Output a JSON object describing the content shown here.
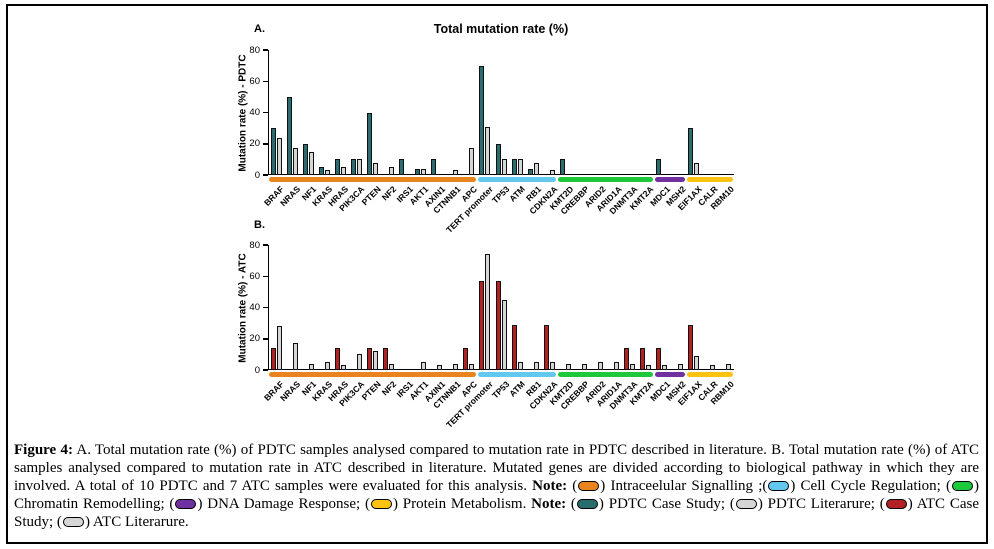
{
  "figure": {
    "panel_a_label": "A.",
    "panel_b_label": "B.",
    "title": "Total mutation rate (%)"
  },
  "chart_data": [
    {
      "type": "bar",
      "panel": "A",
      "title": "Total mutation rate (%)",
      "ylabel": "Mutation rate (%) - PDTC",
      "ylim": [
        0,
        80
      ],
      "yticks": [
        0,
        20,
        40,
        60,
        80
      ],
      "grid": false,
      "legend_position": "none",
      "categories": [
        "BRAF",
        "NRAS",
        "NF1",
        "KRAS",
        "HRAS",
        "PIK3CA",
        "PTEN",
        "NF2",
        "IRS1",
        "AKT1",
        "AXIN1",
        "CTNNB1",
        "APC",
        "TERT promoter",
        "TP53",
        "ATM",
        "RB1",
        "CDKN2A",
        "KMT2D",
        "CREBBP",
        "ARID2",
        "ARID1A",
        "DNMT3A",
        "KMT2A",
        "MDC1",
        "MSH2",
        "EIF1AX",
        "CALR",
        "RBM10"
      ],
      "series": [
        {
          "name": "PDTC Case Study",
          "color": "#2A6D6E",
          "values": [
            30,
            50,
            20,
            5,
            10,
            10,
            40,
            0,
            10,
            4,
            10,
            0,
            0,
            70,
            20,
            10,
            4,
            0,
            10,
            0,
            0,
            0,
            0,
            0,
            10,
            0,
            30,
            0,
            0
          ]
        },
        {
          "name": "PDTC Literarure",
          "color": "#D6D6D6",
          "values": [
            24,
            17,
            15,
            3,
            5,
            10,
            8,
            5,
            0,
            4,
            0,
            3,
            17,
            31,
            10,
            10,
            8,
            3,
            0,
            0,
            0,
            0,
            0,
            0,
            0,
            0,
            8,
            0,
            0
          ]
        }
      ],
      "pathway_bands": [
        {
          "name": "Intracellular Signalling",
          "color": "#E8831D",
          "start": 0,
          "end": 12
        },
        {
          "name": "Cell Cycle Regulation",
          "color": "#62C8EE",
          "start": 13,
          "end": 17
        },
        {
          "name": "Chromatin Remodelling",
          "color": "#1DC83B",
          "start": 18,
          "end": 23
        },
        {
          "name": "DNA Damage Response",
          "color": "#7030A0",
          "start": 24,
          "end": 25
        },
        {
          "name": "Protein Metabolism",
          "color": "#FEC211",
          "start": 26,
          "end": 28
        }
      ]
    },
    {
      "type": "bar",
      "panel": "B",
      "title": "",
      "ylabel": "Mutation rate (%) - ATC",
      "ylim": [
        0,
        80
      ],
      "yticks": [
        0,
        20,
        40,
        60,
        80
      ],
      "grid": false,
      "legend_position": "none",
      "categories": [
        "BRAF",
        "NRAS",
        "NF1",
        "KRAS",
        "HRAS",
        "PIK3CA",
        "PTEN",
        "NF2",
        "IRS1",
        "AKT1",
        "AXIN1",
        "CTNNB1",
        "APC",
        "TERT promoter",
        "TP53",
        "ATM",
        "RB1",
        "CDKN2A",
        "KMT2D",
        "CREBBP",
        "ARID2",
        "ARID1A",
        "DNMT3A",
        "KMT2A",
        "MDC1",
        "MSH2",
        "EIF1AX",
        "CALR",
        "RBM10"
      ],
      "series": [
        {
          "name": "ATC Case Study",
          "color": "#B22222",
          "values": [
            14,
            0,
            0,
            0,
            14,
            0,
            14,
            14,
            0,
            0,
            0,
            0,
            14,
            57,
            57,
            29,
            0,
            29,
            0,
            0,
            0,
            0,
            14,
            14,
            14,
            0,
            29,
            0,
            0
          ]
        },
        {
          "name": "ATC Literarure",
          "color": "#D6D6D6",
          "values": [
            28,
            17,
            4,
            5,
            3,
            10,
            12,
            4,
            0,
            5,
            3,
            4,
            4,
            74,
            45,
            5,
            5,
            5,
            4,
            4,
            5,
            5,
            4,
            3,
            3,
            4,
            9,
            3,
            4
          ]
        }
      ],
      "pathway_bands": [
        {
          "name": "Intracellular Signalling",
          "color": "#E8831D",
          "start": 0,
          "end": 12
        },
        {
          "name": "Cell Cycle Regulation",
          "color": "#62C8EE",
          "start": 13,
          "end": 17
        },
        {
          "name": "Chromatin Remodelling",
          "color": "#1DC83B",
          "start": 18,
          "end": 23
        },
        {
          "name": "DNA Damage Response",
          "color": "#7030A0",
          "start": 24,
          "end": 25
        },
        {
          "name": "Protein Metabolism",
          "color": "#FEC211",
          "start": 26,
          "end": 28
        }
      ]
    }
  ],
  "caption": {
    "segments": [
      {
        "text": "Figure 4:",
        "bold": true
      },
      {
        "text": " A. Total mutation rate (%) of PDTC samples analysed compared to mutation rate in PDTC described in literature. B. Total mutation rate (%) of ATC samples analysed compared to mutation rate in ATC described in literature. Mutated genes are divided according to biological pathway in which they are involved. A total of 10 PDTC and 7 ATC samples were evaluated for this analysis. "
      },
      {
        "text": "Note:",
        "bold": true
      },
      {
        "text": " ("
      },
      {
        "swatch": "#E8831D",
        "name": "intracellular-signalling-swatch"
      },
      {
        "text": ") Intraceelular Signalling ;("
      },
      {
        "swatch": "#62C8EE",
        "name": "cell-cycle-regulation-swatch"
      },
      {
        "text": ") Cell Cycle Regulation; ("
      },
      {
        "swatch": "#1DC83B",
        "name": "chromatin-remodelling-swatch"
      },
      {
        "text": ") Chromatin Remodelling; ("
      },
      {
        "swatch": "#7030A0",
        "name": "dna-damage-response-swatch"
      },
      {
        "text": ") DNA Damage Response; ("
      },
      {
        "swatch": "#FEC211",
        "name": "protein-metabolism-swatch"
      },
      {
        "text": ") Protein Metabolism. "
      },
      {
        "text": "Note:",
        "bold": true
      },
      {
        "text": " ("
      },
      {
        "swatch": "#2A6D6E",
        "name": "pdtc-case-study-swatch"
      },
      {
        "text": ") PDTC Case Study; ("
      },
      {
        "swatch": "#D6D6D6",
        "name": "pdtc-literature-swatch"
      },
      {
        "text": ") PDTC Literarure; ("
      },
      {
        "swatch": "#B22222",
        "name": "atc-case-study-swatch"
      },
      {
        "text": ") ATC Case Study; ("
      },
      {
        "swatch": "#D6D6D6",
        "name": "atc-literature-swatch"
      },
      {
        "text": ") ATC Literarure."
      }
    ]
  }
}
